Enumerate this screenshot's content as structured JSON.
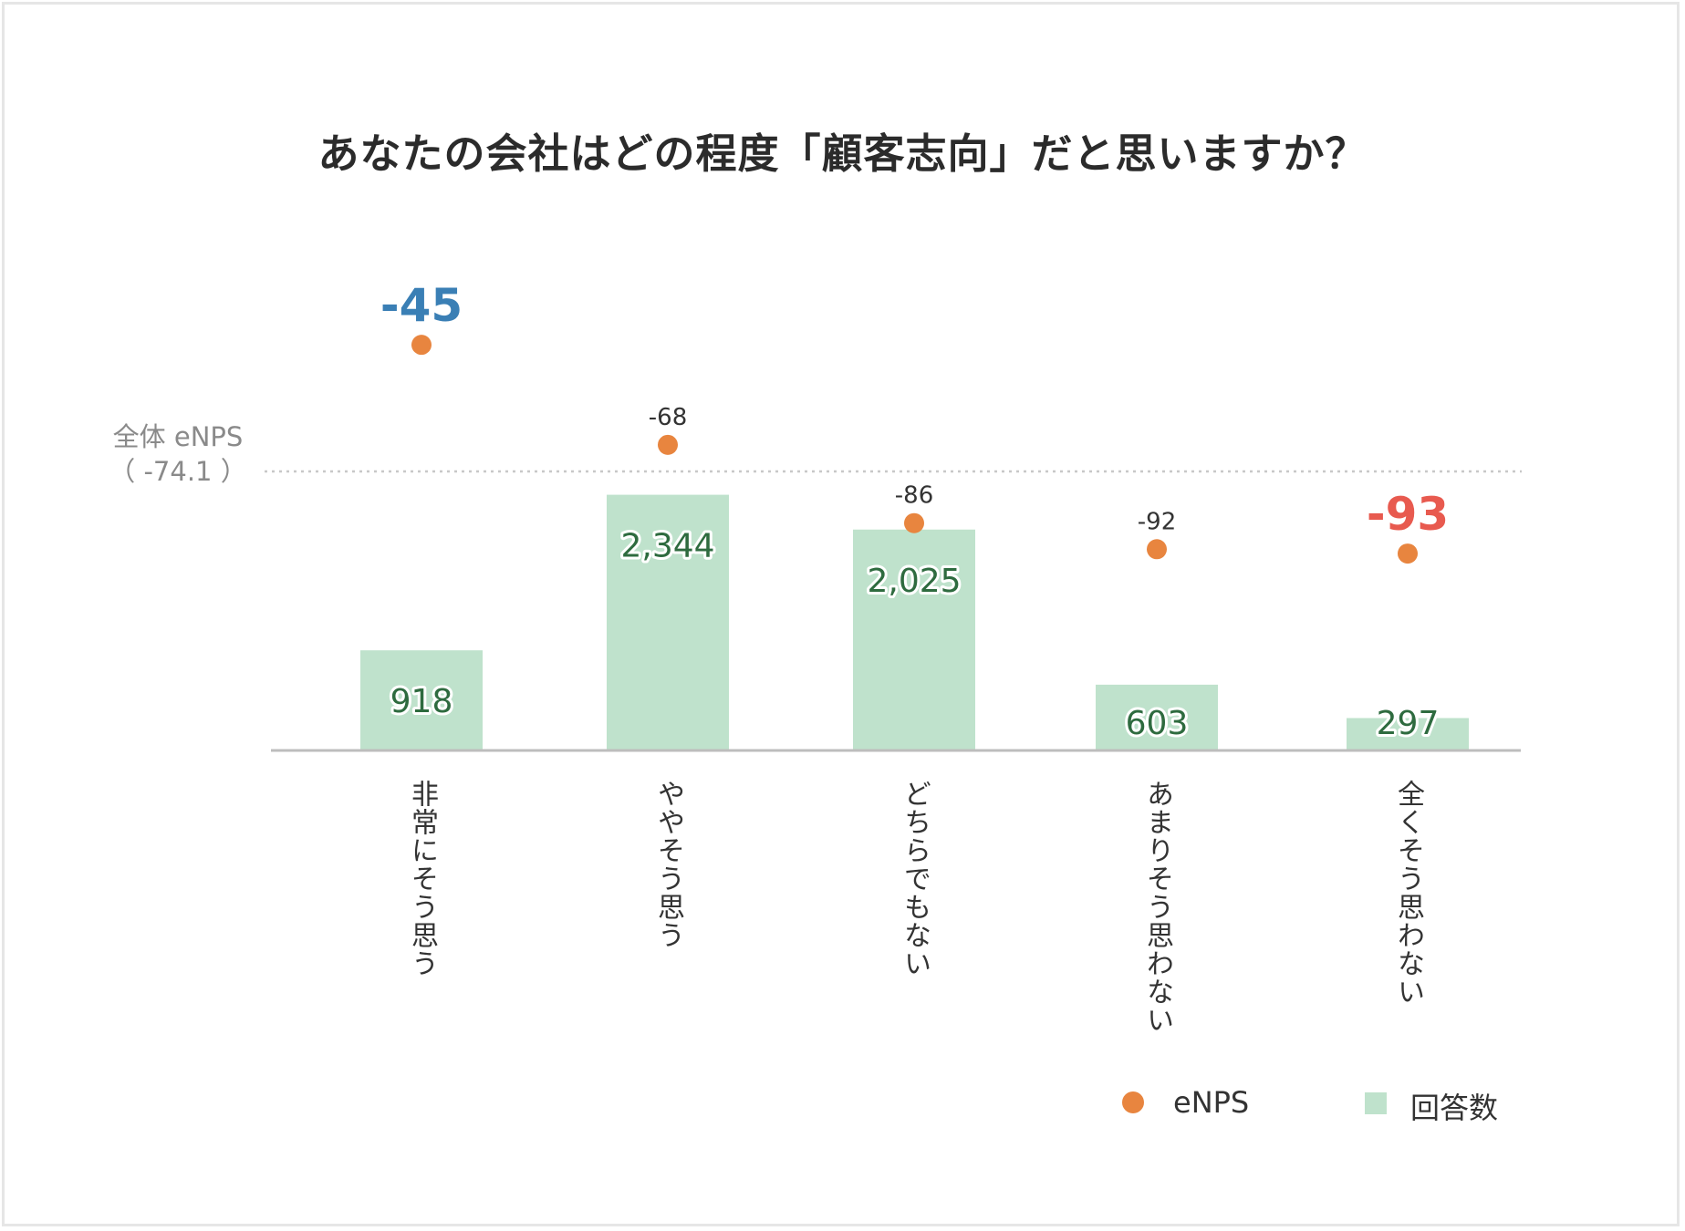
{
  "title": "あなたの会社はどの程度「顧客志向」だと思いますか？",
  "chart_data": {
    "type": "bar",
    "title": "あなたの会社はどの程度「顧客志向」だと思いますか？",
    "categories": [
      "非常にそう思う",
      "ややそう思う",
      "どちらでもない",
      "あまりそう思わない",
      "全くそう思わない"
    ],
    "series": [
      {
        "name": "回答数",
        "type": "bar",
        "color": "#bfe2cc",
        "values": [
          918,
          2344,
          2025,
          603,
          297
        ],
        "labels": [
          "918",
          "2,344",
          "2,025",
          "603",
          "297"
        ]
      },
      {
        "name": "eNPS",
        "type": "scatter",
        "color": "#e8853f",
        "values": [
          -45,
          -68,
          -86,
          -92,
          -93
        ],
        "labels": [
          "-45",
          "-68",
          "-86",
          "-92",
          "-93"
        ]
      }
    ],
    "reference_line": {
      "label": "全体 eNPS",
      "value_label": "（ -74.1 ）",
      "value": -74.1
    },
    "highlight_colors": {
      "max": "#3a7fb5",
      "min": "#e85a4f"
    },
    "bar_ylim": [
      0,
      2700
    ],
    "enps_ylim": [
      -102,
      -37
    ],
    "legend": [
      {
        "label": "eNPS",
        "marker": "circle",
        "color": "#e8853f"
      },
      {
        "label": "回答数",
        "marker": "square",
        "color": "#bfe2cc"
      }
    ],
    "legend_position": "bottom-right",
    "grid": false
  }
}
